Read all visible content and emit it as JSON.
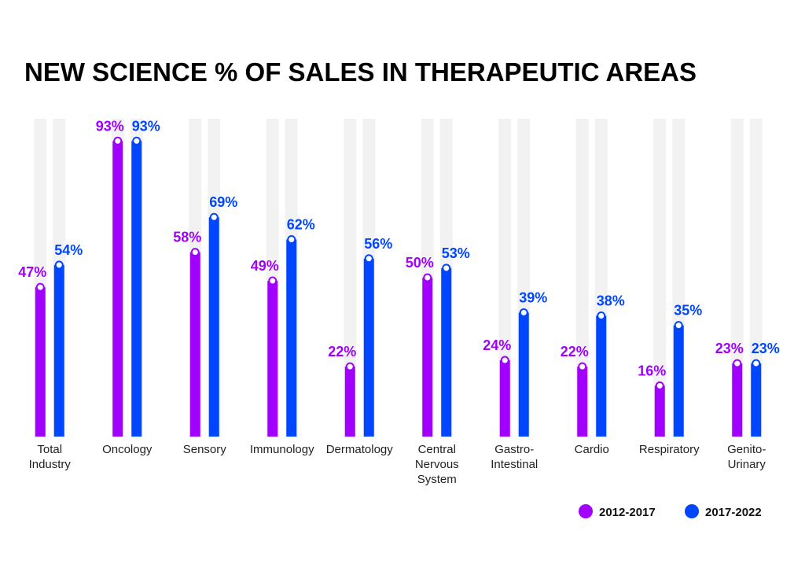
{
  "chart_data": {
    "type": "bar",
    "title": "NEW SCIENCE % OF SALES IN THERAPEUTIC AREAS",
    "categories": [
      "Total\nIndustry",
      "Oncology",
      "Sensory",
      "Immunology",
      "Dermatology",
      "Central\nNervous\nSystem",
      "Gastro-\nIntestinal",
      "Cardio",
      "Respiratory",
      "Genito-\nUrinary"
    ],
    "series": [
      {
        "name": "2012-2017",
        "color": "#a100ff",
        "values": [
          47,
          93,
          58,
          49,
          22,
          50,
          24,
          22,
          16,
          23
        ],
        "value_labels": [
          "47%",
          "93%",
          "58%",
          "49%",
          "22%",
          "50%",
          "24%",
          "22%",
          "16%",
          "23%"
        ]
      },
      {
        "name": "2017-2022",
        "color": "#0046ff",
        "values": [
          54,
          93,
          69,
          62,
          56,
          53,
          39,
          38,
          35,
          23
        ],
        "value_labels": [
          "54%",
          "93%",
          "69%",
          "62%",
          "56%",
          "53%",
          "39%",
          "38%",
          "35%",
          "23%"
        ]
      }
    ],
    "ylim": [
      0,
      100
    ]
  }
}
